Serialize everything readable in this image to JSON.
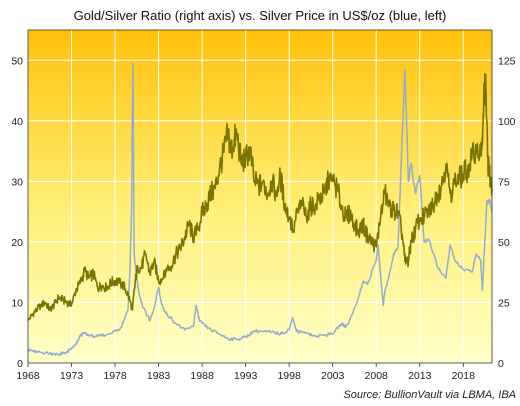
{
  "chart_data": {
    "type": "line",
    "title": "Gold/Silver Ratio (right axis) vs. Silver Price in US$/oz (blue, left)",
    "source": "Source: BullionVault via LBMA, IBA",
    "x_range": [
      1968,
      2021.3
    ],
    "x_ticks": [
      "1968",
      "1973",
      "1978",
      "1983",
      "1988",
      "1993",
      "1998",
      "2003",
      "2008",
      "2013",
      "2018"
    ],
    "y_left": {
      "range": [
        0,
        55
      ],
      "ticks": [
        "0",
        "10",
        "20",
        "30",
        "40",
        "50"
      ]
    },
    "y_right": {
      "range": [
        0,
        137.5
      ],
      "ticks": [
        "0",
        "25",
        "50",
        "75",
        "100",
        "125"
      ]
    },
    "grid": true,
    "colors": {
      "ratio": "#7a7400",
      "silver": "#93acd0",
      "bg_top": "#ffc20a",
      "bg_bottom": "#ffffc8",
      "grid": "#ffffff"
    },
    "series": [
      {
        "axis": "right",
        "x": [
          1968.0,
          1968.5,
          1969.0,
          1969.5,
          1970.0,
          1970.5,
          1971.0,
          1971.5,
          1972.0,
          1972.5,
          1973.0,
          1973.5,
          1974.0,
          1974.5,
          1975.0,
          1975.5,
          1976.0,
          1976.5,
          1977.0,
          1977.5,
          1978.0,
          1978.5,
          1979.0,
          1979.5,
          1980.0,
          1980.3,
          1980.6,
          1981.0,
          1981.5,
          1982.0,
          1982.5,
          1983.0,
          1983.5,
          1984.0,
          1984.5,
          1985.0,
          1985.5,
          1986.0,
          1986.5,
          1987.0,
          1987.5,
          1988.0,
          1988.5,
          1989.0,
          1989.5,
          1990.0,
          1990.5,
          1991.0,
          1991.3,
          1991.7,
          1992.0,
          1992.5,
          1993.0,
          1993.5,
          1994.0,
          1994.5,
          1995.0,
          1995.5,
          1996.0,
          1996.5,
          1997.0,
          1997.5,
          1998.0,
          1998.5,
          1999.0,
          1999.5,
          2000.0,
          2000.5,
          2001.0,
          2001.5,
          2002.0,
          2002.5,
          2003.0,
          2003.5,
          2004.0,
          2004.5,
          2005.0,
          2005.5,
          2006.0,
          2006.5,
          2007.0,
          2007.5,
          2008.0,
          2008.5,
          2009.0,
          2009.5,
          2010.0,
          2010.5,
          2011.0,
          2011.3,
          2011.7,
          2012.0,
          2012.5,
          2013.0,
          2013.5,
          2014.0,
          2014.5,
          2015.0,
          2015.5,
          2016.0,
          2016.5,
          2017.0,
          2017.5,
          2018.0,
          2018.5,
          2019.0,
          2019.5,
          2020.0,
          2020.2,
          2020.4,
          2020.6,
          2020.8,
          2021.0,
          2021.3
        ],
        "values": [
          17.5,
          20,
          22,
          24,
          25,
          22,
          24,
          27,
          26,
          25,
          24,
          30,
          33,
          38,
          35,
          37,
          31,
          32,
          31,
          33,
          34,
          33,
          32,
          28,
          22,
          33,
          40,
          39,
          45,
          37,
          42,
          34,
          35,
          39,
          40,
          45,
          47,
          52,
          57,
          52,
          55,
          62,
          65,
          70,
          72,
          80,
          87,
          95,
          87,
          92,
          95,
          82,
          85,
          88,
          75,
          73,
          75,
          70,
          75,
          70,
          77,
          65,
          60,
          55,
          63,
          65,
          60,
          65,
          65,
          68,
          70,
          75,
          75,
          72,
          65,
          60,
          62,
          56,
          55,
          57,
          52,
          50,
          48,
          60,
          70,
          65,
          63,
          62,
          53,
          42,
          42,
          50,
          55,
          60,
          60,
          63,
          65,
          70,
          73,
          82,
          70,
          74,
          76,
          78,
          80,
          85,
          87,
          88,
          90,
          113,
          113,
          85,
          78,
          72
        ]
      },
      {
        "axis": "left",
        "x": [
          1968.0,
          1968.5,
          1969.0,
          1970.0,
          1971.0,
          1971.5,
          1972.0,
          1972.5,
          1973.0,
          1973.5,
          1974.0,
          1974.5,
          1975.0,
          1976.0,
          1977.0,
          1978.0,
          1978.5,
          1979.0,
          1979.5,
          1979.7,
          1979.9,
          1980.05,
          1980.2,
          1980.4,
          1980.7,
          1981.0,
          1981.5,
          1982.0,
          1982.5,
          1983.0,
          1983.3,
          1983.7,
          1984.0,
          1985.0,
          1986.0,
          1987.0,
          1987.3,
          1987.7,
          1988.0,
          1989.0,
          1990.0,
          1991.0,
          1992.0,
          1993.0,
          1994.0,
          1995.0,
          1996.0,
          1997.0,
          1998.0,
          1998.4,
          1998.8,
          1999.0,
          2000.0,
          2001.0,
          2002.0,
          2003.0,
          2004.0,
          2004.5,
          2005.0,
          2006.0,
          2006.5,
          2007.0,
          2008.0,
          2008.2,
          2008.8,
          2009.0,
          2009.5,
          2010.0,
          2010.5,
          2011.0,
          2011.3,
          2011.7,
          2012.0,
          2012.5,
          2013.0,
          2013.5,
          2014.0,
          2015.0,
          2016.0,
          2016.5,
          2017.0,
          2018.0,
          2019.0,
          2019.5,
          2020.0,
          2020.2,
          2020.4,
          2020.7,
          2021.0,
          2021.3
        ],
        "values": [
          2.2,
          2.0,
          1.8,
          1.7,
          1.5,
          1.4,
          1.6,
          1.8,
          2.4,
          3.0,
          4.5,
          5.0,
          4.5,
          4.4,
          4.7,
          5.3,
          5.5,
          7.0,
          9.0,
          15.0,
          25.0,
          49.5,
          18.0,
          15.0,
          12.0,
          10.0,
          8.5,
          7.0,
          9.0,
          12.5,
          10.0,
          8.5,
          8.0,
          6.5,
          5.5,
          6.0,
          9.5,
          7.0,
          6.5,
          5.5,
          4.8,
          4.0,
          3.9,
          4.3,
          5.3,
          5.2,
          5.1,
          4.8,
          5.5,
          7.5,
          5.5,
          5.2,
          5.0,
          4.4,
          4.6,
          4.8,
          6.5,
          6.0,
          7.2,
          11.0,
          13.5,
          13.0,
          17.0,
          19.5,
          9.5,
          12.0,
          14.5,
          18.0,
          19.0,
          38.0,
          48.5,
          30.0,
          33.0,
          28.0,
          31.0,
          20.0,
          20.5,
          16.0,
          14.0,
          19.5,
          17.0,
          15.5,
          15.0,
          18.0,
          17.0,
          12.0,
          18.0,
          26.5,
          27.0,
          25.0
        ]
      }
    ]
  }
}
